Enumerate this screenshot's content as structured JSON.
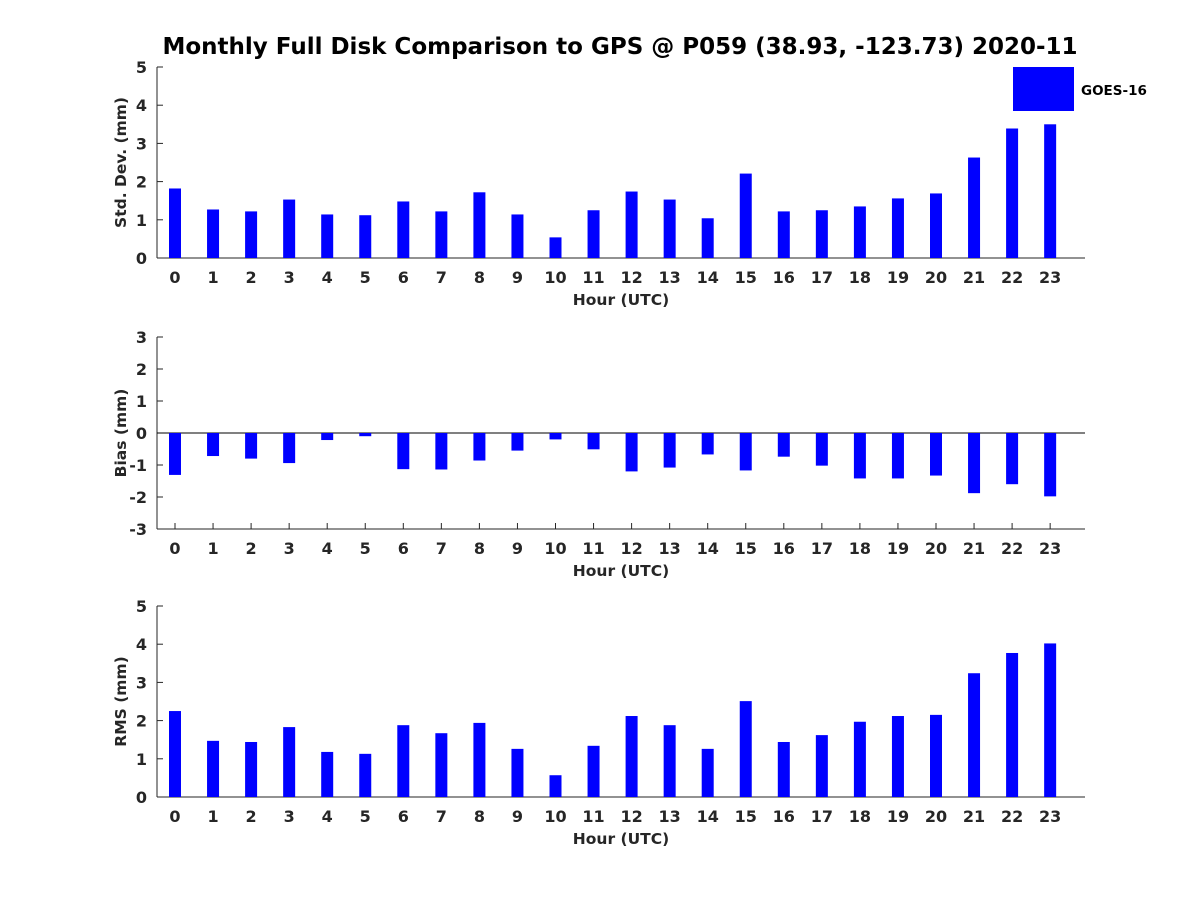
{
  "chart_data": [
    {
      "type": "bar",
      "title": "Monthly Full Disk Comparison to GPS @ P059 (38.93, -123.73) 2020-11",
      "xlabel": "Hour (UTC)",
      "ylabel": "Std. Dev. (mm)",
      "ylim": [
        0,
        5
      ],
      "yticks": [
        0,
        1,
        2,
        3,
        4,
        5
      ],
      "categories": [
        "0",
        "1",
        "2",
        "3",
        "4",
        "5",
        "6",
        "7",
        "8",
        "9",
        "10",
        "11",
        "12",
        "13",
        "14",
        "15",
        "16",
        "17",
        "18",
        "19",
        "20",
        "21",
        "22",
        "23"
      ],
      "series": [
        {
          "name": "GOES-16",
          "color": "#0000ff",
          "values": [
            1.82,
            1.27,
            1.22,
            1.53,
            1.14,
            1.12,
            1.48,
            1.22,
            1.72,
            1.14,
            0.54,
            1.25,
            1.74,
            1.53,
            1.04,
            2.21,
            1.22,
            1.25,
            1.35,
            1.56,
            1.69,
            2.63,
            3.39,
            3.5
          ]
        }
      ],
      "legend": {
        "position": "top-right",
        "entries": [
          "GOES-16"
        ]
      }
    },
    {
      "type": "bar",
      "xlabel": "Hour (UTC)",
      "ylabel": "Bias (mm)",
      "ylim": [
        -3,
        3
      ],
      "yticks": [
        -3,
        -2,
        -1,
        0,
        1,
        2,
        3
      ],
      "zero_line": true,
      "categories": [
        "0",
        "1",
        "2",
        "3",
        "4",
        "5",
        "6",
        "7",
        "8",
        "9",
        "10",
        "11",
        "12",
        "13",
        "14",
        "15",
        "16",
        "17",
        "18",
        "19",
        "20",
        "21",
        "22",
        "23"
      ],
      "series": [
        {
          "name": "GOES-16",
          "color": "#0000ff",
          "values": [
            -1.31,
            -0.72,
            -0.8,
            -0.94,
            -0.22,
            -0.1,
            -1.13,
            -1.14,
            -0.86,
            -0.55,
            -0.2,
            -0.51,
            -1.2,
            -1.08,
            -0.67,
            -1.17,
            -0.74,
            -1.02,
            -1.42,
            -1.42,
            -1.33,
            -1.88,
            -1.6,
            -1.98
          ]
        }
      ]
    },
    {
      "type": "bar",
      "xlabel": "Hour (UTC)",
      "ylabel": "RMS (mm)",
      "ylim": [
        0,
        5
      ],
      "yticks": [
        0,
        1,
        2,
        3,
        4,
        5
      ],
      "categories": [
        "0",
        "1",
        "2",
        "3",
        "4",
        "5",
        "6",
        "7",
        "8",
        "9",
        "10",
        "11",
        "12",
        "13",
        "14",
        "15",
        "16",
        "17",
        "18",
        "19",
        "20",
        "21",
        "22",
        "23"
      ],
      "series": [
        {
          "name": "GOES-16",
          "color": "#0000ff",
          "values": [
            2.25,
            1.47,
            1.44,
            1.83,
            1.18,
            1.13,
            1.88,
            1.67,
            1.94,
            1.26,
            0.57,
            1.34,
            2.12,
            1.88,
            1.26,
            2.51,
            1.44,
            1.62,
            1.97,
            2.12,
            2.15,
            3.24,
            3.77,
            4.02
          ]
        }
      ]
    }
  ]
}
